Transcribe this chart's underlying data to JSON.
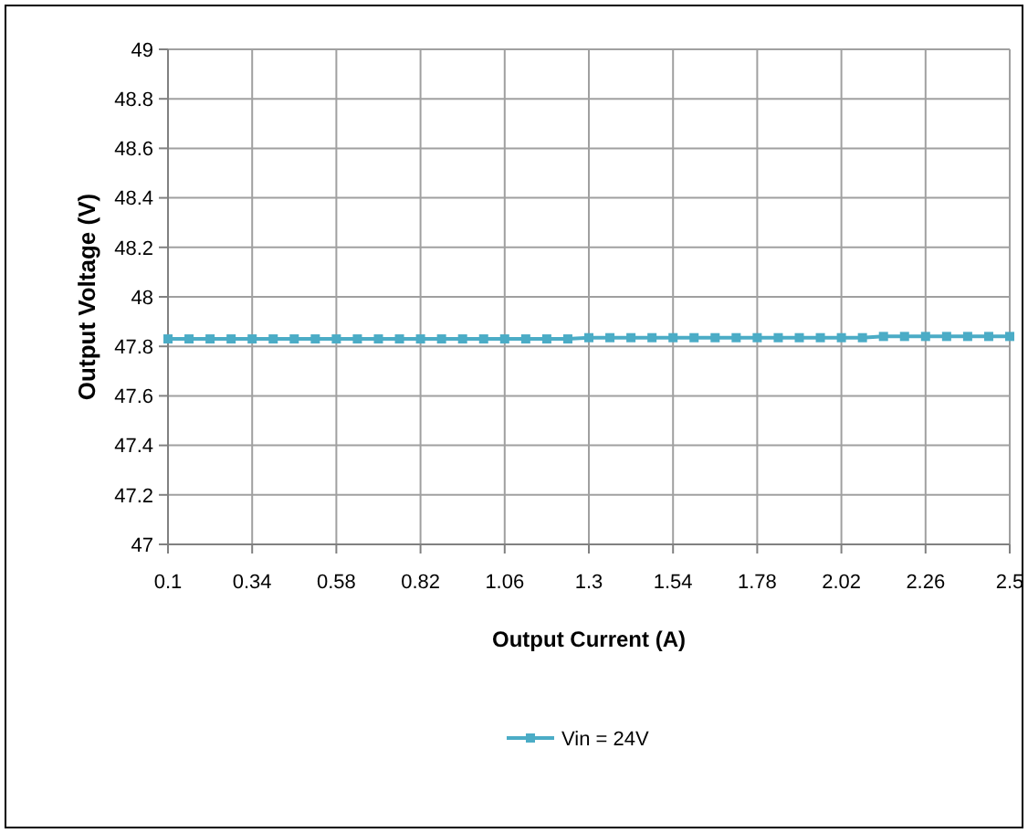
{
  "chart_data": {
    "type": "line",
    "xlabel": "Output Current (A)",
    "ylabel": "Output Voltage (V)",
    "x": [
      0.1,
      0.16,
      0.22,
      0.28,
      0.34,
      0.4,
      0.46,
      0.52,
      0.58,
      0.64,
      0.7,
      0.76,
      0.82,
      0.88,
      0.94,
      1.0,
      1.06,
      1.12,
      1.18,
      1.24,
      1.3,
      1.36,
      1.42,
      1.48,
      1.54,
      1.6,
      1.66,
      1.72,
      1.78,
      1.84,
      1.9,
      1.96,
      2.02,
      2.08,
      2.14,
      2.2,
      2.26,
      2.32,
      2.38,
      2.44,
      2.5
    ],
    "series": [
      {
        "name": "Vin = 24V",
        "color": "#4bacc6",
        "values": [
          47.83,
          47.83,
          47.83,
          47.83,
          47.83,
          47.83,
          47.83,
          47.83,
          47.83,
          47.83,
          47.83,
          47.83,
          47.83,
          47.83,
          47.83,
          47.83,
          47.83,
          47.83,
          47.83,
          47.83,
          47.835,
          47.835,
          47.835,
          47.835,
          47.835,
          47.835,
          47.835,
          47.835,
          47.835,
          47.835,
          47.835,
          47.835,
          47.835,
          47.835,
          47.84,
          47.84,
          47.84,
          47.84,
          47.84,
          47.84,
          47.84
        ]
      }
    ],
    "xlim": [
      0.1,
      2.5
    ],
    "xticks": [
      0.1,
      0.34,
      0.58,
      0.82,
      1.06,
      1.3,
      1.54,
      1.78,
      2.02,
      2.26,
      2.5
    ],
    "ylim": [
      47,
      49
    ],
    "yticks": [
      47,
      47.2,
      47.4,
      47.6,
      47.8,
      48,
      48.2,
      48.4,
      48.6,
      48.8,
      49
    ],
    "grid": true,
    "legend": "bottom",
    "marker": "square",
    "line_style": "solid"
  }
}
